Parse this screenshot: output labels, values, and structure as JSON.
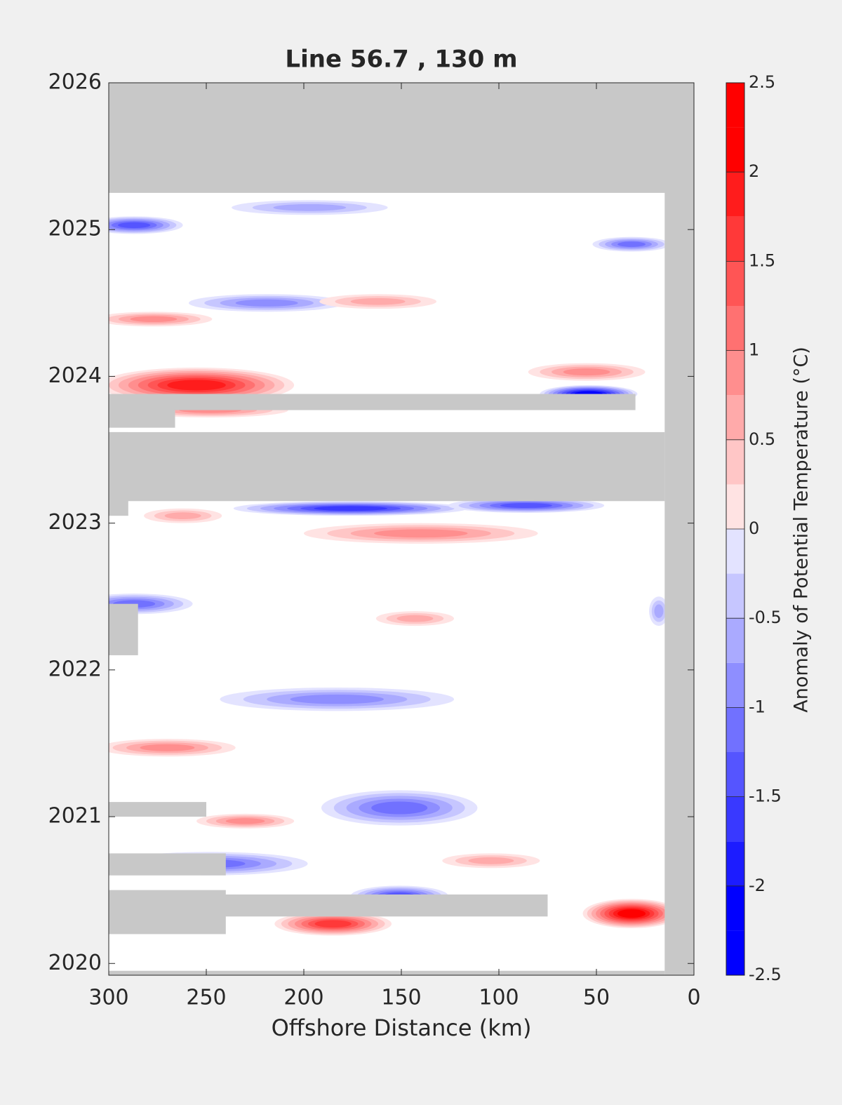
{
  "chart_data": {
    "type": "contour",
    "title": "Line 56.7 , 130 m",
    "x_label": "Offshore Distance (km)",
    "xlim": [
      300,
      0
    ],
    "xticks": [
      300,
      250,
      200,
      150,
      100,
      50,
      0
    ],
    "ylim": [
      2019.92,
      2026
    ],
    "yticks": [
      2020,
      2021,
      2022,
      2023,
      2024,
      2025,
      2026
    ],
    "colorbar": {
      "label": "Anomaly of Potential Temperature (°C)",
      "clim": [
        -2.5,
        2.5
      ],
      "ticks": [
        -2.5,
        -2,
        -1.5,
        -1,
        -0.5,
        0,
        0.5,
        1,
        1.5,
        2,
        2.5
      ],
      "level_step": 0.25,
      "low_color": "#0000ff",
      "mid_color": "#ffffff",
      "high_color": "#ff0000"
    },
    "missing_color": "#c8c8c8",
    "anomalies": {
      "x": [
        255,
        54,
        55,
        176,
        86,
        140,
        262,
        287,
        183,
        151,
        270,
        32,
        185,
        151,
        248,
        230,
        287,
        32,
        219,
        277,
        162,
        197,
        104,
        143,
        18,
        248
      ],
      "y": [
        2023.94,
        2023.88,
        2024.03,
        2023.1,
        2023.12,
        2022.93,
        2023.05,
        2022.45,
        2021.8,
        2021.06,
        2021.47,
        2020.34,
        2020.27,
        2020.46,
        2020.68,
        2020.97,
        2025.03,
        2024.9,
        2024.5,
        2024.39,
        2024.51,
        2025.15,
        2020.7,
        2022.35,
        2022.4,
        2023.77
      ],
      "values": [
        2.0,
        -2.25,
        1.0,
        -1.75,
        -1.5,
        1.0,
        0.75,
        -1.25,
        -1.0,
        -1.25,
        1.0,
        2.25,
        1.75,
        -1.5,
        -1.25,
        1.0,
        -1.5,
        -1.25,
        -1.0,
        1.0,
        0.75,
        -0.75,
        0.75,
        0.75,
        -0.75,
        1.0
      ],
      "x_extent": [
        50,
        25,
        30,
        60,
        40,
        60,
        20,
        30,
        60,
        40,
        35,
        25,
        30,
        25,
        50,
        25,
        25,
        20,
        40,
        30,
        30,
        40,
        25,
        20,
        5,
        40
      ],
      "y_extent": [
        0.12,
        0.06,
        0.06,
        0.05,
        0.05,
        0.07,
        0.05,
        0.07,
        0.08,
        0.12,
        0.06,
        0.1,
        0.08,
        0.07,
        0.08,
        0.05,
        0.06,
        0.05,
        0.06,
        0.05,
        0.05,
        0.05,
        0.05,
        0.05,
        0.1,
        0.05
      ]
    },
    "no_data": [
      [
        0,
        300,
        2025.25,
        2026
      ],
      [
        0,
        15,
        2019.92,
        2026
      ],
      [
        15,
        300,
        2023.15,
        2023.62
      ],
      [
        290,
        300,
        2023.05,
        2023.62
      ],
      [
        30,
        300,
        2023.77,
        2023.88
      ],
      [
        266,
        300,
        2023.65,
        2023.88
      ],
      [
        285,
        300,
        2022.1,
        2022.45
      ],
      [
        250,
        300,
        2021.0,
        2021.1
      ],
      [
        240,
        300,
        2020.6,
        2020.75
      ],
      [
        75,
        300,
        2020.32,
        2020.47
      ],
      [
        240,
        300,
        2020.2,
        2020.5
      ],
      [
        15,
        300,
        2019.92,
        2019.95
      ]
    ]
  }
}
